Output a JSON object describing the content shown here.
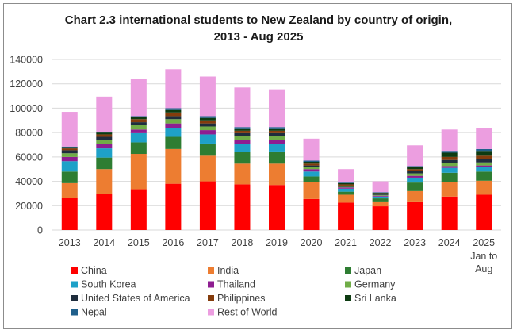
{
  "chart_data": {
    "type": "bar",
    "stacked": true,
    "title_line1": "Chart 2.3  international students to New Zealand by country of origin,",
    "title_line2": "2013 - Aug 2025",
    "categories": [
      "2013",
      "2014",
      "2015",
      "2016",
      "2017",
      "2018",
      "2019",
      "2020",
      "2021",
      "2022",
      "2023",
      "2024",
      "2025"
    ],
    "category_label_extra": {
      "2025": [
        "Jan to",
        "Aug"
      ]
    },
    "ylim": [
      0,
      140000
    ],
    "yticks": [
      0,
      20000,
      40000,
      60000,
      80000,
      100000,
      120000,
      140000
    ],
    "ytick_labels": [
      "0",
      "20000",
      "40000",
      "60000",
      "80000",
      "100000",
      "120000",
      "140000"
    ],
    "grid": true,
    "legend_position": "bottom",
    "series": [
      {
        "name": "China",
        "color": "#ff0000",
        "values": [
          26500,
          29500,
          33500,
          38000,
          40000,
          37500,
          37000,
          25500,
          22500,
          19500,
          23500,
          27500,
          29000
        ]
      },
      {
        "name": "India",
        "color": "#ed7d31",
        "values": [
          12000,
          20500,
          29000,
          28500,
          21000,
          17000,
          17500,
          14000,
          6500,
          4000,
          8500,
          12000,
          11500
        ]
      },
      {
        "name": "Japan",
        "color": "#2e7d32",
        "values": [
          9500,
          9500,
          9500,
          10000,
          10000,
          9500,
          10000,
          4500,
          2500,
          2500,
          7000,
          7500,
          7500
        ]
      },
      {
        "name": "South Korea",
        "color": "#1ea1c8",
        "values": [
          8500,
          7500,
          7500,
          7500,
          7500,
          6500,
          6000,
          4000,
          2500,
          1500,
          4000,
          4000,
          3500
        ]
      },
      {
        "name": "Thailand",
        "color": "#8e1e91",
        "values": [
          3500,
          3500,
          3000,
          3500,
          3500,
          3500,
          3500,
          2000,
          1000,
          700,
          1500,
          1500,
          1500
        ]
      },
      {
        "name": "Germany",
        "color": "#70ad47",
        "values": [
          3000,
          3500,
          3500,
          3500,
          3000,
          3000,
          3000,
          1500,
          500,
          600,
          2000,
          2500,
          2500
        ]
      },
      {
        "name": "United States of America",
        "color": "#1f2d3d",
        "values": [
          2500,
          2500,
          2500,
          2500,
          2500,
          2500,
          2500,
          1500,
          1000,
          800,
          2000,
          2500,
          3000
        ]
      },
      {
        "name": "Philippines",
        "color": "#843c0c",
        "values": [
          1500,
          2000,
          2500,
          3000,
          2500,
          2000,
          2000,
          1500,
          1000,
          500,
          1500,
          2500,
          2500
        ]
      },
      {
        "name": "Sri Lanka",
        "color": "#0d3b12",
        "values": [
          1000,
          1500,
          1500,
          2000,
          2000,
          2000,
          2000,
          1500,
          1000,
          500,
          1500,
          3500,
          4000
        ]
      },
      {
        "name": "Nepal",
        "color": "#1f5f8b",
        "values": [
          500,
          500,
          1000,
          1500,
          1500,
          1000,
          1000,
          1000,
          500,
          400,
          1000,
          1500,
          1500
        ]
      },
      {
        "name": "Rest of World",
        "color": "#ec9ee0",
        "values": [
          28500,
          29000,
          30500,
          32000,
          32500,
          32500,
          31000,
          18000,
          11000,
          9000,
          17000,
          17500,
          17500
        ]
      }
    ]
  }
}
